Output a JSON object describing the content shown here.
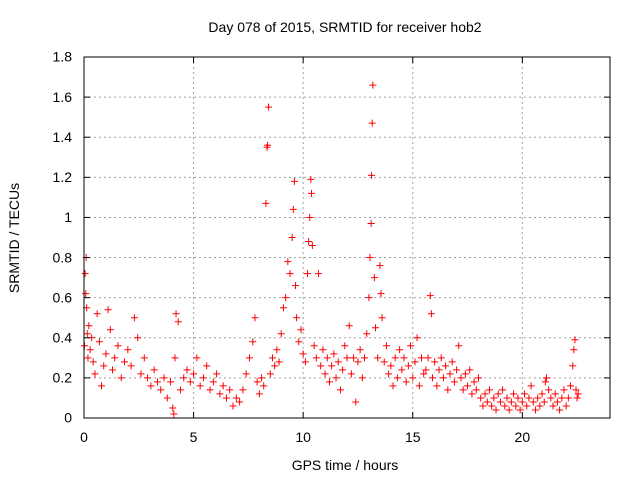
{
  "chart_data": {
    "type": "scatter",
    "title": "Day 078 of 2015, SRMTID for receiver hob2",
    "xlabel": "GPS time / hours",
    "ylabel": "SRMTID / TECUs",
    "xlim": [
      0,
      24
    ],
    "ylim": [
      0,
      1.8
    ],
    "xticks": [
      0,
      5,
      10,
      15,
      20
    ],
    "xtick_labels": [
      "0",
      "5",
      "10",
      "15",
      "20"
    ],
    "yticks": [
      0,
      0.2,
      0.4,
      0.6,
      0.8,
      1,
      1.2,
      1.4,
      1.6,
      1.8
    ],
    "ytick_labels": [
      "0",
      "0.2",
      "0.4",
      "0.6",
      "0.8",
      "1",
      "1.2",
      "1.4",
      "1.6",
      "1.8"
    ],
    "grid": true,
    "marker": "+",
    "series": [
      {
        "name": "hob2",
        "color": "#ff0000",
        "points": [
          [
            0.02,
            0.36
          ],
          [
            0.05,
            0.72
          ],
          [
            0.08,
            0.62
          ],
          [
            0.1,
            0.8
          ],
          [
            0.12,
            0.55
          ],
          [
            0.15,
            0.42
          ],
          [
            0.18,
            0.3
          ],
          [
            0.22,
            0.46
          ],
          [
            0.28,
            0.34
          ],
          [
            0.35,
            0.4
          ],
          [
            0.42,
            0.28
          ],
          [
            0.5,
            0.22
          ],
          [
            0.6,
            0.52
          ],
          [
            0.7,
            0.38
          ],
          [
            0.8,
            0.16
          ],
          [
            0.9,
            0.26
          ],
          [
            1.0,
            0.32
          ],
          [
            1.1,
            0.54
          ],
          [
            1.2,
            0.44
          ],
          [
            1.3,
            0.24
          ],
          [
            1.4,
            0.3
          ],
          [
            1.55,
            0.36
          ],
          [
            1.7,
            0.2
          ],
          [
            1.85,
            0.28
          ],
          [
            2.0,
            0.34
          ],
          [
            2.15,
            0.26
          ],
          [
            2.3,
            0.5
          ],
          [
            2.45,
            0.4
          ],
          [
            2.6,
            0.22
          ],
          [
            2.75,
            0.3
          ],
          [
            2.9,
            0.2
          ],
          [
            3.05,
            0.16
          ],
          [
            3.2,
            0.24
          ],
          [
            3.35,
            0.18
          ],
          [
            3.5,
            0.14
          ],
          [
            3.65,
            0.2
          ],
          [
            3.8,
            0.1
          ],
          [
            3.95,
            0.18
          ],
          [
            4.05,
            0.05
          ],
          [
            4.1,
            0.02
          ],
          [
            4.15,
            0.3
          ],
          [
            4.2,
            0.52
          ],
          [
            4.3,
            0.48
          ],
          [
            4.4,
            0.14
          ],
          [
            4.55,
            0.2
          ],
          [
            4.7,
            0.24
          ],
          [
            4.85,
            0.18
          ],
          [
            5.0,
            0.22
          ],
          [
            5.15,
            0.3
          ],
          [
            5.3,
            0.16
          ],
          [
            5.45,
            0.2
          ],
          [
            5.6,
            0.26
          ],
          [
            5.75,
            0.14
          ],
          [
            5.9,
            0.18
          ],
          [
            6.05,
            0.22
          ],
          [
            6.2,
            0.12
          ],
          [
            6.35,
            0.16
          ],
          [
            6.5,
            0.1
          ],
          [
            6.65,
            0.14
          ],
          [
            6.8,
            0.06
          ],
          [
            6.95,
            0.1
          ],
          [
            7.1,
            0.08
          ],
          [
            7.25,
            0.14
          ],
          [
            7.4,
            0.22
          ],
          [
            7.55,
            0.3
          ],
          [
            7.7,
            0.38
          ],
          [
            7.8,
            0.5
          ],
          [
            7.9,
            0.18
          ],
          [
            8.0,
            0.12
          ],
          [
            8.1,
            0.2
          ],
          [
            8.2,
            0.16
          ],
          [
            8.3,
            1.07
          ],
          [
            8.35,
            1.35
          ],
          [
            8.38,
            1.36
          ],
          [
            8.42,
            1.55
          ],
          [
            8.5,
            0.22
          ],
          [
            8.6,
            0.3
          ],
          [
            8.7,
            0.26
          ],
          [
            8.8,
            0.34
          ],
          [
            8.9,
            0.28
          ],
          [
            9.0,
            0.42
          ],
          [
            9.1,
            0.55
          ],
          [
            9.2,
            0.6
          ],
          [
            9.3,
            0.78
          ],
          [
            9.4,
            0.72
          ],
          [
            9.5,
            0.9
          ],
          [
            9.55,
            1.04
          ],
          [
            9.6,
            1.18
          ],
          [
            9.65,
            0.66
          ],
          [
            9.7,
            0.5
          ],
          [
            9.8,
            0.38
          ],
          [
            9.9,
            0.44
          ],
          [
            10.0,
            0.32
          ],
          [
            10.1,
            0.28
          ],
          [
            10.2,
            0.72
          ],
          [
            10.25,
            0.88
          ],
          [
            10.3,
            1.0
          ],
          [
            10.35,
            1.19
          ],
          [
            10.38,
            1.12
          ],
          [
            10.42,
            0.86
          ],
          [
            10.5,
            0.36
          ],
          [
            10.6,
            0.3
          ],
          [
            10.7,
            0.72
          ],
          [
            10.8,
            0.26
          ],
          [
            10.9,
            0.34
          ],
          [
            11.0,
            0.22
          ],
          [
            11.1,
            0.3
          ],
          [
            11.2,
            0.18
          ],
          [
            11.3,
            0.26
          ],
          [
            11.4,
            0.32
          ],
          [
            11.5,
            0.2
          ],
          [
            11.6,
            0.28
          ],
          [
            11.7,
            0.14
          ],
          [
            11.8,
            0.24
          ],
          [
            11.9,
            0.36
          ],
          [
            12.0,
            0.3
          ],
          [
            12.1,
            0.46
          ],
          [
            12.2,
            0.22
          ],
          [
            12.3,
            0.3
          ],
          [
            12.4,
            0.08
          ],
          [
            12.5,
            0.28
          ],
          [
            12.6,
            0.34
          ],
          [
            12.7,
            0.2
          ],
          [
            12.8,
            0.3
          ],
          [
            12.9,
            0.42
          ],
          [
            13.0,
            0.6
          ],
          [
            13.05,
            0.8
          ],
          [
            13.1,
            0.97
          ],
          [
            13.12,
            1.21
          ],
          [
            13.15,
            1.47
          ],
          [
            13.18,
            1.66
          ],
          [
            13.25,
            0.7
          ],
          [
            13.3,
            0.45
          ],
          [
            13.4,
            0.3
          ],
          [
            13.5,
            0.76
          ],
          [
            13.55,
            0.62
          ],
          [
            13.6,
            0.5
          ],
          [
            13.7,
            0.28
          ],
          [
            13.8,
            0.36
          ],
          [
            13.9,
            0.22
          ],
          [
            14.0,
            0.26
          ],
          [
            14.1,
            0.16
          ],
          [
            14.2,
            0.3
          ],
          [
            14.3,
            0.2
          ],
          [
            14.4,
            0.34
          ],
          [
            14.5,
            0.24
          ],
          [
            14.6,
            0.3
          ],
          [
            14.7,
            0.18
          ],
          [
            14.8,
            0.26
          ],
          [
            14.9,
            0.36
          ],
          [
            15.0,
            0.2
          ],
          [
            15.1,
            0.28
          ],
          [
            15.2,
            0.4
          ],
          [
            15.3,
            0.16
          ],
          [
            15.4,
            0.3
          ],
          [
            15.5,
            0.22
          ],
          [
            15.6,
            0.24
          ],
          [
            15.7,
            0.3
          ],
          [
            15.8,
            0.61
          ],
          [
            15.85,
            0.52
          ],
          [
            15.9,
            0.2
          ],
          [
            16.0,
            0.28
          ],
          [
            16.1,
            0.16
          ],
          [
            16.2,
            0.24
          ],
          [
            16.3,
            0.3
          ],
          [
            16.4,
            0.2
          ],
          [
            16.5,
            0.26
          ],
          [
            16.6,
            0.14
          ],
          [
            16.7,
            0.22
          ],
          [
            16.8,
            0.28
          ],
          [
            16.9,
            0.18
          ],
          [
            17.0,
            0.24
          ],
          [
            17.1,
            0.36
          ],
          [
            17.2,
            0.2
          ],
          [
            17.3,
            0.14
          ],
          [
            17.4,
            0.22
          ],
          [
            17.5,
            0.16
          ],
          [
            17.6,
            0.24
          ],
          [
            17.7,
            0.12
          ],
          [
            17.8,
            0.18
          ],
          [
            17.9,
            0.14
          ],
          [
            18.0,
            0.2
          ],
          [
            18.1,
            0.1
          ],
          [
            18.2,
            0.06
          ],
          [
            18.3,
            0.12
          ],
          [
            18.4,
            0.08
          ],
          [
            18.5,
            0.14
          ],
          [
            18.6,
            0.06
          ],
          [
            18.7,
            0.1
          ],
          [
            18.8,
            0.04
          ],
          [
            18.9,
            0.12
          ],
          [
            19.0,
            0.08
          ],
          [
            19.1,
            0.14
          ],
          [
            19.2,
            0.06
          ],
          [
            19.3,
            0.1
          ],
          [
            19.4,
            0.04
          ],
          [
            19.5,
            0.08
          ],
          [
            19.6,
            0.12
          ],
          [
            19.7,
            0.06
          ],
          [
            19.8,
            0.1
          ],
          [
            19.9,
            0.04
          ],
          [
            20.0,
            0.08
          ],
          [
            20.1,
            0.12
          ],
          [
            20.2,
            0.06
          ],
          [
            20.3,
            0.1
          ],
          [
            20.4,
            0.16
          ],
          [
            20.5,
            0.08
          ],
          [
            20.6,
            0.04
          ],
          [
            20.7,
            0.1
          ],
          [
            20.8,
            0.06
          ],
          [
            20.9,
            0.12
          ],
          [
            21.0,
            0.08
          ],
          [
            21.05,
            0.18
          ],
          [
            21.1,
            0.2
          ],
          [
            21.2,
            0.14
          ],
          [
            21.3,
            0.1
          ],
          [
            21.4,
            0.06
          ],
          [
            21.5,
            0.12
          ],
          [
            21.6,
            0.08
          ],
          [
            21.7,
            0.04
          ],
          [
            21.8,
            0.1
          ],
          [
            21.9,
            0.14
          ],
          [
            22.0,
            0.06
          ],
          [
            22.1,
            0.1
          ],
          [
            22.2,
            0.16
          ],
          [
            22.3,
            0.26
          ],
          [
            22.35,
            0.34
          ],
          [
            22.4,
            0.39
          ],
          [
            22.45,
            0.14
          ],
          [
            22.5,
            0.1
          ],
          [
            22.55,
            0.12
          ]
        ]
      }
    ]
  }
}
